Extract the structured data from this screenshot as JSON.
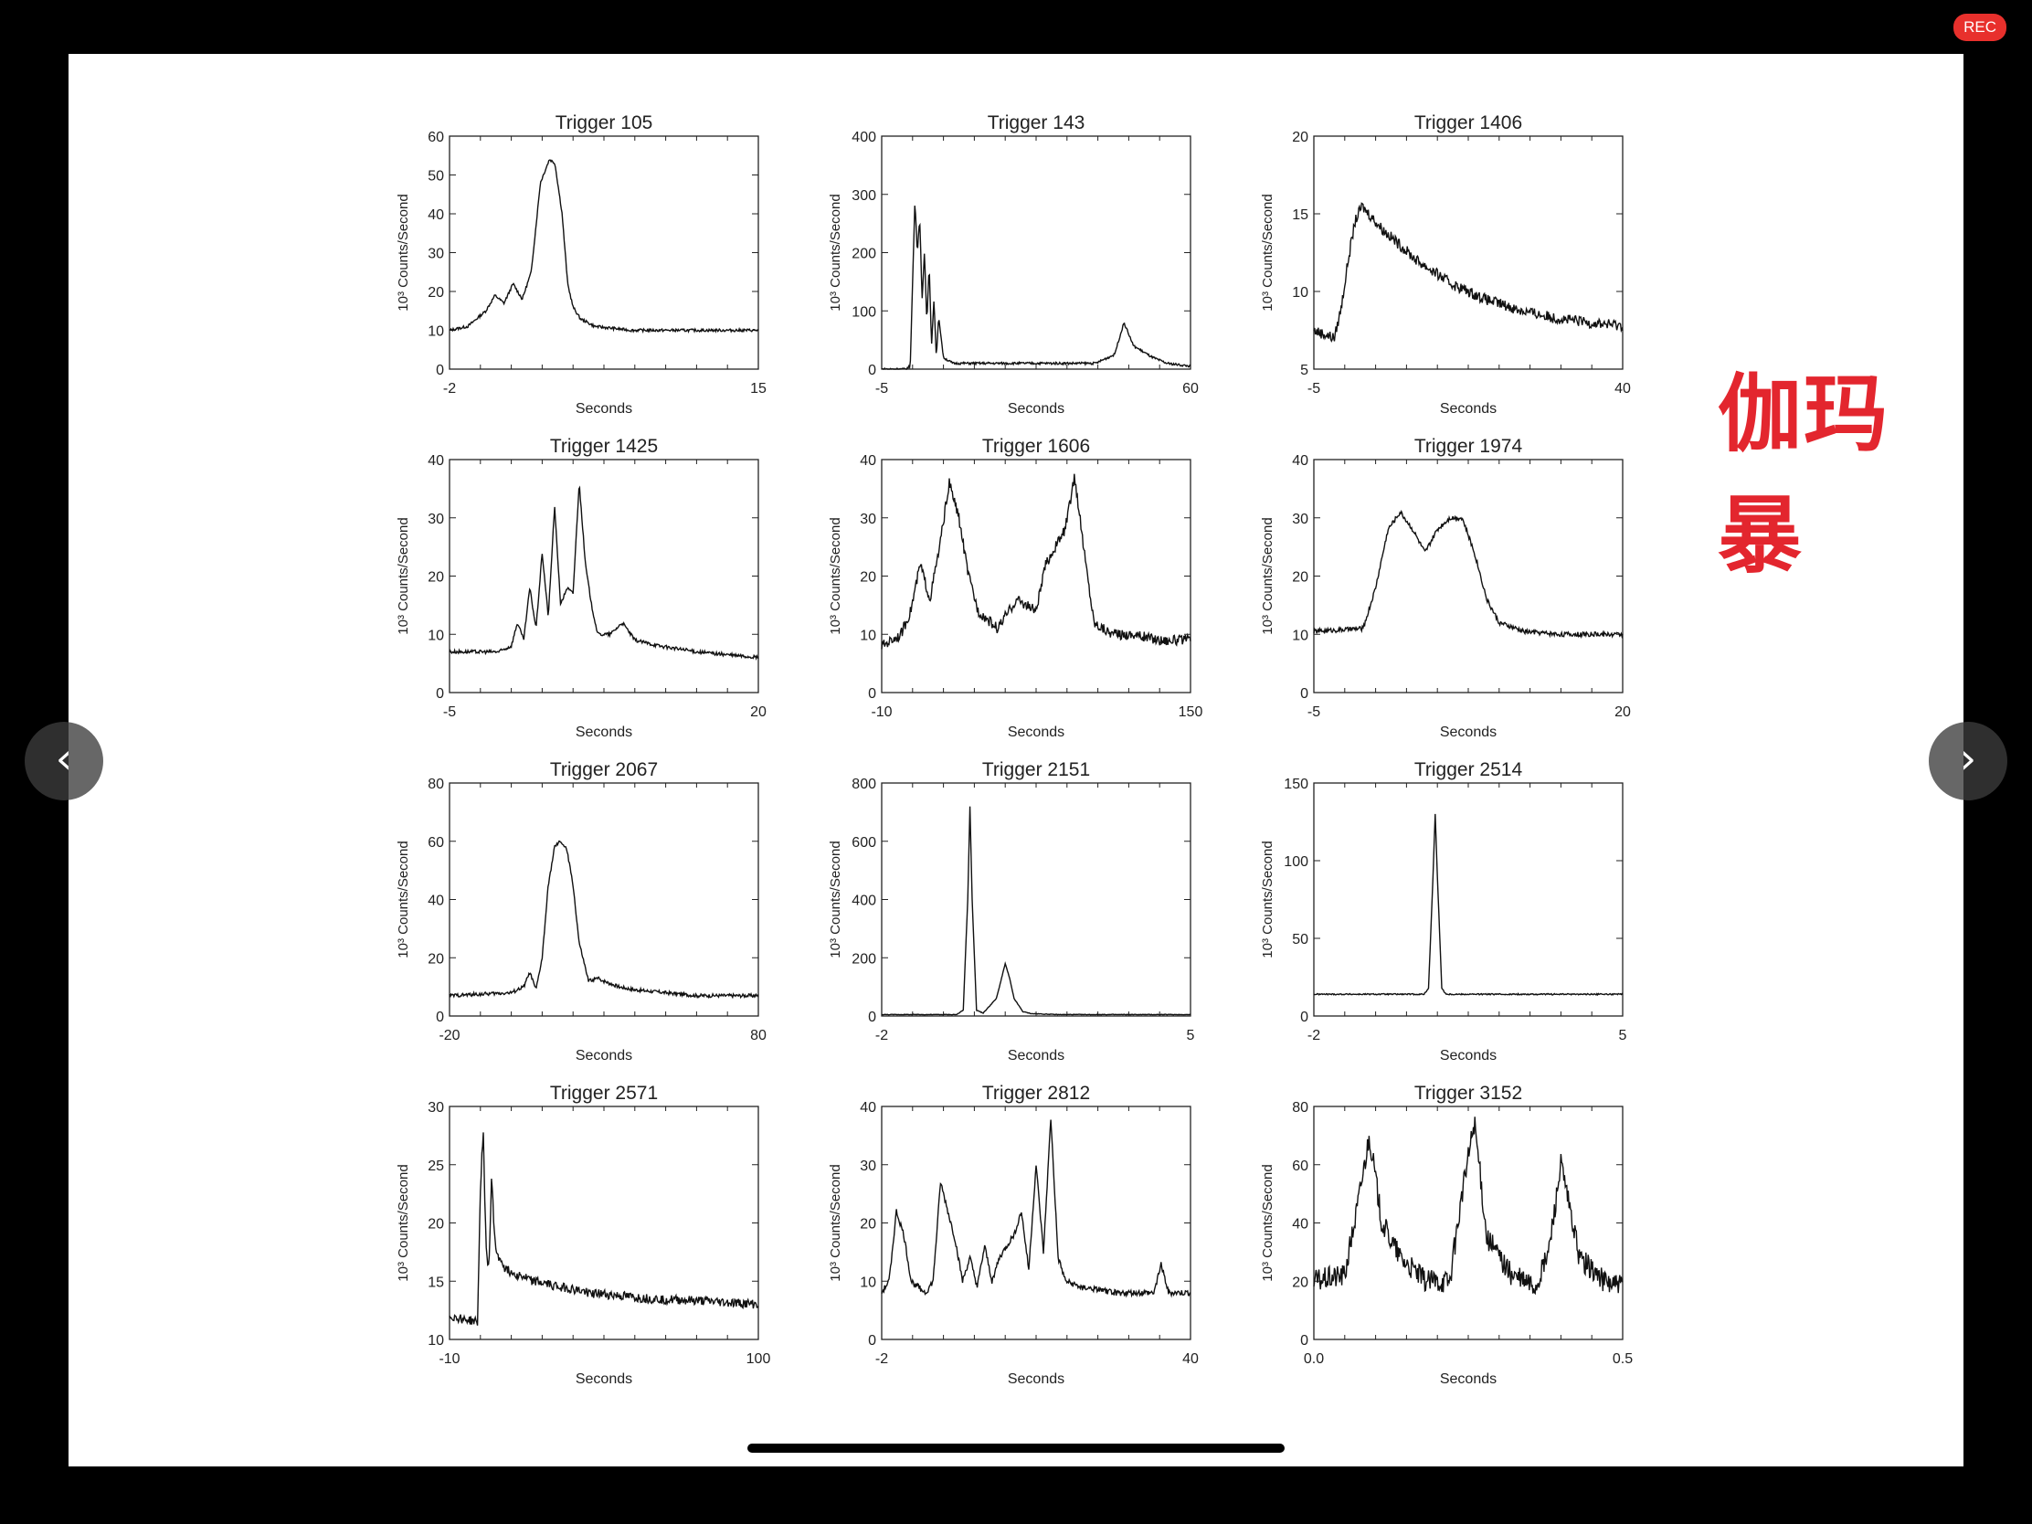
{
  "recording_badge": "REC",
  "annotation": "伽玛暴",
  "nav": {
    "prev_icon": "chevron-left-icon",
    "next_icon": "chevron-right-icon",
    "prev_glyph": "‹",
    "next_glyph": "›"
  },
  "chart_data": [
    {
      "type": "line",
      "title": "Trigger 105",
      "xlabel": "Seconds",
      "ylabel": "10³ Counts/Second",
      "xlim": [
        -2,
        15
      ],
      "ylim": [
        0,
        60
      ],
      "xticks": [
        -2,
        15
      ],
      "yticks": [
        0,
        10,
        20,
        30,
        40,
        50,
        60
      ],
      "noise": 0.35,
      "series": [
        {
          "x": [
            -2,
            -1,
            0,
            0.5,
            1,
            1.5,
            2,
            2.5,
            3,
            3.5,
            3.8,
            4.2,
            4.5,
            4.8,
            5.2,
            6,
            7,
            8,
            10,
            12,
            15
          ],
          "values": [
            10,
            11,
            15,
            19,
            17,
            22,
            18,
            25,
            48,
            54,
            53,
            40,
            22,
            16,
            13,
            11,
            10.5,
            10,
            10,
            10,
            10
          ]
        }
      ]
    },
    {
      "type": "line",
      "title": "Trigger 143",
      "xlabel": "Seconds",
      "ylabel": "10³ Counts/Second",
      "xlim": [
        -5,
        60
      ],
      "ylim": [
        0,
        400
      ],
      "xticks": [
        -5,
        60
      ],
      "yticks": [
        0,
        100,
        200,
        300,
        400
      ],
      "noise": 2,
      "series": [
        {
          "x": [
            -5,
            0,
            1,
            2,
            2.5,
            3,
            3.5,
            4,
            4.5,
            5,
            5.5,
            6,
            6.5,
            7,
            8,
            10,
            20,
            40,
            44,
            46,
            48,
            50,
            52,
            55,
            60
          ],
          "values": [
            0,
            0,
            5,
            290,
            200,
            260,
            120,
            200,
            80,
            180,
            40,
            120,
            20,
            90,
            20,
            10,
            10,
            10,
            25,
            80,
            40,
            30,
            20,
            10,
            5
          ]
        }
      ]
    },
    {
      "type": "line",
      "title": "Trigger 1406",
      "xlabel": "Seconds",
      "ylabel": "10³ Counts/Second",
      "xlim": [
        -5,
        40
      ],
      "ylim": [
        5,
        20
      ],
      "xticks": [
        -5,
        40
      ],
      "yticks": [
        5,
        10,
        15,
        20
      ],
      "noise": 0.35,
      "series": [
        {
          "x": [
            -5,
            -2,
            -1,
            0,
            1,
            2,
            3,
            5,
            10,
            15,
            20,
            25,
            30,
            35,
            40
          ],
          "values": [
            7.5,
            7,
            9,
            12,
            14.5,
            15.5,
            15,
            14,
            12,
            10.5,
            9.5,
            8.8,
            8.3,
            8,
            7.8
          ]
        }
      ]
    },
    {
      "type": "line",
      "title": "Trigger 1425",
      "xlabel": "Seconds",
      "ylabel": "10³ Counts/Second",
      "xlim": [
        -5,
        20
      ],
      "ylim": [
        0,
        40
      ],
      "xticks": [
        -5,
        20
      ],
      "yticks": [
        0,
        10,
        20,
        30,
        40
      ],
      "noise": 0.3,
      "series": [
        {
          "x": [
            -5,
            -1,
            0,
            0.5,
            1,
            1.5,
            2,
            2.5,
            3,
            3.5,
            4,
            4.5,
            5,
            5.5,
            6,
            6.5,
            7,
            8,
            9,
            10,
            12,
            15,
            20
          ],
          "values": [
            7,
            7,
            8,
            12,
            9,
            18,
            11,
            24,
            13,
            32,
            15,
            18,
            17,
            36,
            22,
            15,
            10,
            10,
            12,
            9,
            8,
            7,
            6
          ]
        }
      ]
    },
    {
      "type": "line",
      "title": "Trigger 1606",
      "xlabel": "Seconds",
      "ylabel": "10³ Counts/Second",
      "xlim": [
        -10,
        150
      ],
      "ylim": [
        0,
        40
      ],
      "xticks": [
        -10,
        150
      ],
      "yticks": [
        0,
        10,
        20,
        30,
        40
      ],
      "noise": 0.9,
      "series": [
        {
          "x": [
            -10,
            0,
            5,
            10,
            15,
            20,
            25,
            30,
            35,
            40,
            50,
            60,
            70,
            75,
            80,
            85,
            90,
            95,
            100,
            105,
            110,
            120,
            135,
            150
          ],
          "values": [
            8,
            10,
            14,
            22,
            16,
            25,
            36,
            30,
            20,
            14,
            11,
            16,
            14,
            22,
            25,
            28,
            37,
            24,
            12,
            11,
            10,
            10,
            9,
            9
          ]
        }
      ]
    },
    {
      "type": "line",
      "title": "Trigger 1974",
      "xlabel": "Seconds",
      "ylabel": "10³ Counts/Second",
      "xlim": [
        -5,
        20
      ],
      "ylim": [
        0,
        40
      ],
      "xticks": [
        -5,
        20
      ],
      "yticks": [
        0,
        10,
        20,
        30,
        40
      ],
      "noise": 0.4,
      "series": [
        {
          "x": [
            -5,
            -1,
            0,
            1,
            2,
            3,
            4,
            5,
            6,
            7,
            8,
            9,
            10,
            12,
            15,
            20
          ],
          "values": [
            10.5,
            11,
            18,
            28,
            31,
            28,
            24,
            28,
            30,
            30,
            24,
            16,
            12,
            10.5,
            10,
            10
          ]
        }
      ]
    },
    {
      "type": "line",
      "title": "Trigger 2067",
      "xlabel": "Seconds",
      "ylabel": "10³ Counts/Second",
      "xlim": [
        -20,
        80
      ],
      "ylim": [
        0,
        80
      ],
      "xticks": [
        -20,
        80
      ],
      "yticks": [
        0,
        20,
        40,
        60,
        80
      ],
      "noise": 0.6,
      "series": [
        {
          "x": [
            -20,
            0,
            4,
            6,
            8,
            10,
            12,
            14,
            16,
            18,
            20,
            22,
            25,
            28,
            30,
            35,
            40,
            50,
            60,
            80
          ],
          "values": [
            7,
            8,
            10,
            15,
            9,
            20,
            45,
            58,
            60,
            57,
            45,
            25,
            12,
            13,
            12,
            10,
            9,
            8,
            7,
            7
          ]
        }
      ]
    },
    {
      "type": "line",
      "title": "Trigger 2151",
      "xlabel": "Seconds",
      "ylabel": "10³ Counts/Second",
      "xlim": [
        -2,
        5
      ],
      "ylim": [
        0,
        800
      ],
      "xticks": [
        -2,
        5
      ],
      "yticks": [
        0,
        200,
        400,
        600,
        800
      ],
      "noise": 1,
      "series": [
        {
          "x": [
            -2,
            -0.3,
            -0.15,
            -0.05,
            0,
            0.05,
            0.15,
            0.3,
            0.6,
            0.8,
            0.9,
            1.0,
            1.2,
            1.4,
            2,
            5
          ],
          "values": [
            5,
            5,
            20,
            400,
            720,
            400,
            20,
            10,
            60,
            180,
            130,
            60,
            15,
            8,
            5,
            5
          ]
        }
      ]
    },
    {
      "type": "line",
      "title": "Trigger 2514",
      "xlabel": "Seconds",
      "ylabel": "10³ Counts/Second",
      "xlim": [
        -2,
        5
      ],
      "ylim": [
        0,
        150
      ],
      "xticks": [
        -2,
        5
      ],
      "yticks": [
        0,
        50,
        100,
        150
      ],
      "noise": 0.4,
      "series": [
        {
          "x": [
            -2,
            0.5,
            0.6,
            0.7,
            0.75,
            0.8,
            0.9,
            1.0,
            1.1,
            2,
            5
          ],
          "values": [
            14,
            14,
            18,
            90,
            130,
            90,
            18,
            14,
            14,
            14,
            14
          ]
        }
      ]
    },
    {
      "type": "line",
      "title": "Trigger 2571",
      "xlabel": "Seconds",
      "ylabel": "10³ Counts/Second",
      "xlim": [
        -10,
        100
      ],
      "ylim": [
        10,
        30
      ],
      "xticks": [
        -10,
        100
      ],
      "yticks": [
        10,
        15,
        20,
        25,
        30
      ],
      "noise": 0.4,
      "series": [
        {
          "x": [
            -10,
            0,
            1,
            2,
            3,
            4,
            5,
            6,
            7,
            8,
            10,
            20,
            40,
            60,
            80,
            100
          ],
          "values": [
            12,
            11.5,
            23,
            28,
            18,
            16,
            24,
            19,
            17,
            17,
            16,
            15,
            14,
            13.5,
            13.3,
            13
          ]
        }
      ]
    },
    {
      "type": "line",
      "title": "Trigger 2812",
      "xlabel": "Seconds",
      "ylabel": "10³ Counts/Second",
      "xlim": [
        -2,
        40
      ],
      "ylim": [
        0,
        40
      ],
      "xticks": [
        -2,
        40
      ],
      "yticks": [
        0,
        10,
        20,
        30,
        40
      ],
      "noise": 0.5,
      "series": [
        {
          "x": [
            -2,
            -1,
            0,
            1,
            2,
            4,
            5,
            6,
            7,
            8,
            9,
            10,
            11,
            12,
            13,
            14,
            16,
            17,
            18,
            19,
            20,
            21,
            22,
            23,
            25,
            30,
            35,
            36,
            37,
            40
          ],
          "values": [
            8,
            10,
            22,
            18,
            10,
            8,
            10,
            27,
            22,
            17,
            10,
            14,
            9,
            16,
            10,
            14,
            18,
            22,
            12,
            30,
            15,
            38,
            14,
            10,
            9,
            8,
            8,
            13,
            8,
            8
          ]
        }
      ]
    },
    {
      "type": "line",
      "title": "Trigger 3152",
      "xlabel": "Seconds",
      "ylabel": "10³ Counts/Second",
      "xlim": [
        0,
        0.5
      ],
      "ylim": [
        0,
        80
      ],
      "xticks": [
        "0.0",
        "0.5"
      ],
      "yticks": [
        0,
        20,
        40,
        60,
        80
      ],
      "noise": 4,
      "series": [
        {
          "x": [
            0,
            0.05,
            0.07,
            0.09,
            0.11,
            0.14,
            0.18,
            0.22,
            0.24,
            0.26,
            0.28,
            0.32,
            0.36,
            0.38,
            0.4,
            0.43,
            0.47,
            0.5
          ],
          "values": [
            20,
            22,
            45,
            70,
            40,
            28,
            20,
            20,
            50,
            75,
            35,
            22,
            18,
            30,
            60,
            28,
            20,
            18
          ]
        }
      ]
    }
  ]
}
